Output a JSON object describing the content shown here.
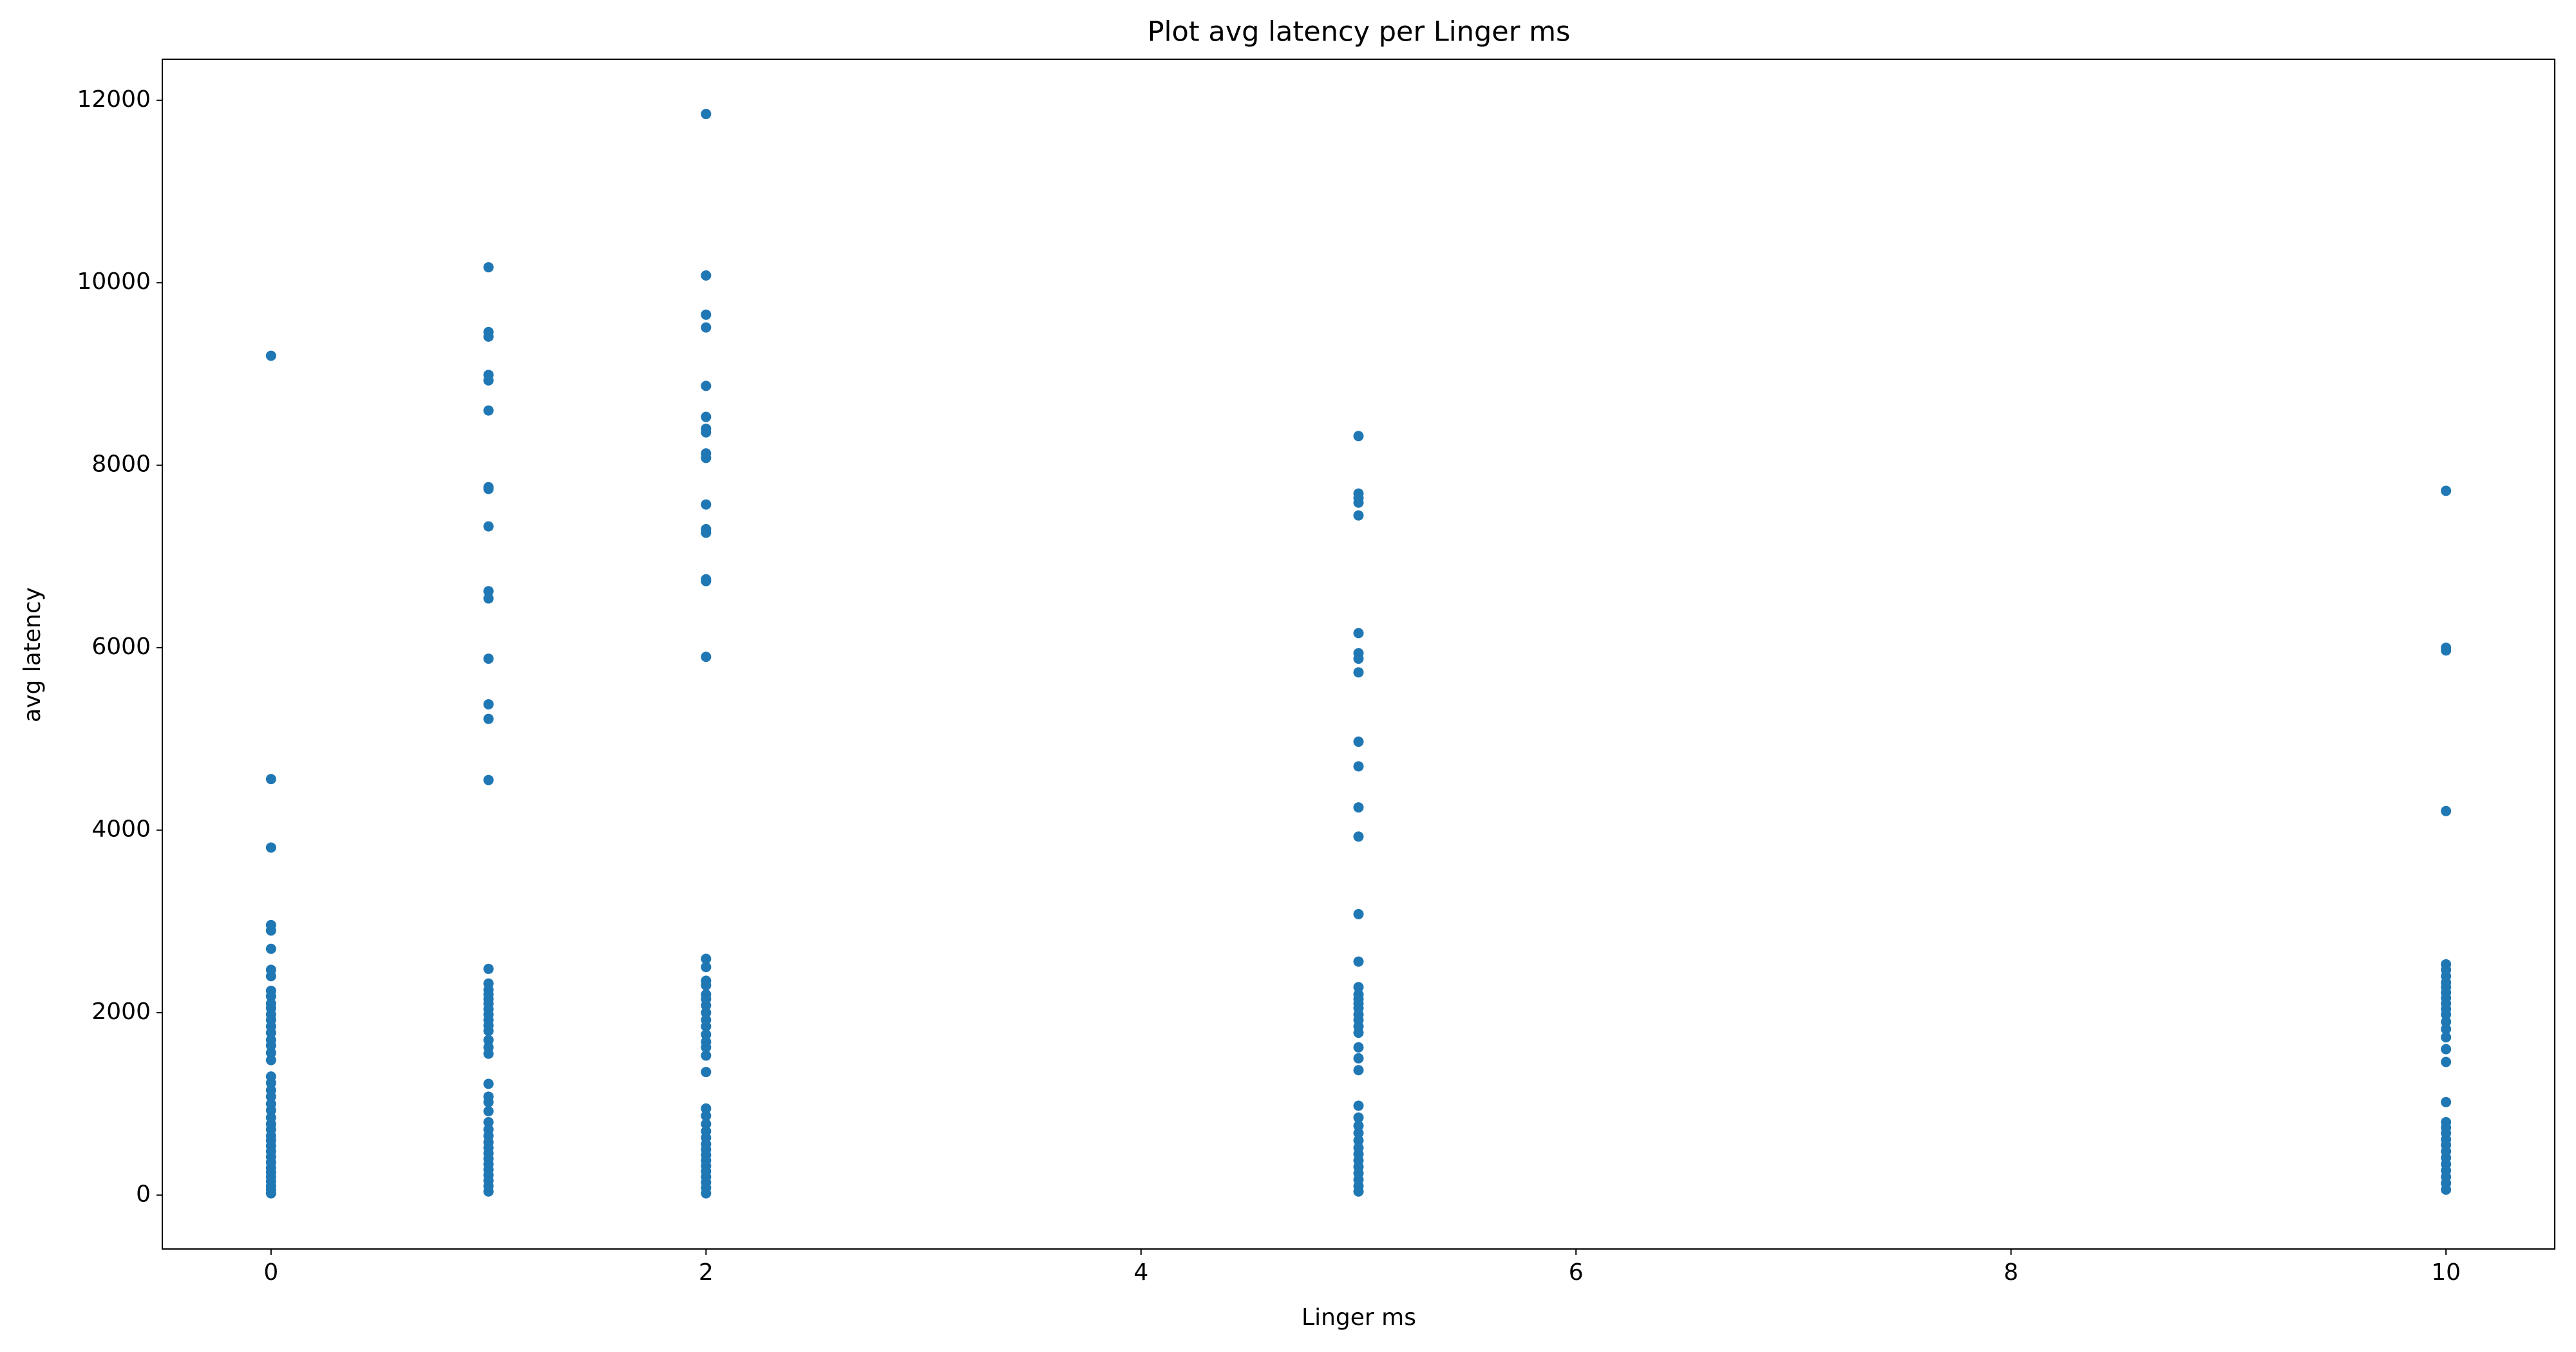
{
  "chart_data": {
    "type": "scatter",
    "title": "Plot avg latency per Linger ms",
    "x_label": "Linger ms",
    "y_label": "avg latency",
    "xlim": [
      -0.5,
      10.5
    ],
    "ylim": [
      -590,
      12450
    ],
    "xticks": [
      0,
      2,
      4,
      6,
      8,
      10
    ],
    "yticks": [
      0,
      2000,
      4000,
      6000,
      8000,
      10000,
      12000
    ],
    "grid": false,
    "series": [
      {
        "color": "#1f77b4",
        "x": [
          0,
          0,
          0,
          0,
          0,
          0,
          0,
          0,
          0,
          0,
          0,
          0,
          0,
          0,
          0,
          0,
          0,
          0,
          0,
          0,
          0,
          0,
          0,
          0,
          0,
          0,
          0,
          0,
          0,
          0,
          0,
          0,
          0,
          0,
          0,
          0,
          0,
          0,
          0,
          0,
          0,
          0,
          1,
          1,
          1,
          1,
          1,
          1,
          1,
          1,
          1,
          1,
          1,
          1,
          1,
          1,
          1,
          1,
          1,
          1,
          1,
          1,
          1,
          1,
          1,
          1,
          1,
          1,
          1,
          1,
          1,
          1,
          1,
          1,
          1,
          1,
          1,
          1,
          1,
          1,
          1,
          1,
          1,
          1,
          1,
          1,
          1,
          1,
          2,
          2,
          2,
          2,
          2,
          2,
          2,
          2,
          2,
          2,
          2,
          2,
          2,
          2,
          2,
          2,
          2,
          2,
          2,
          2,
          2,
          2,
          2,
          2,
          2,
          2,
          2,
          2,
          2,
          2,
          2,
          2,
          2,
          2,
          2,
          2,
          2,
          2,
          2,
          2,
          2,
          2,
          2,
          2,
          2,
          2,
          5,
          5,
          5,
          5,
          5,
          5,
          5,
          5,
          5,
          5,
          5,
          5,
          5,
          5,
          5,
          5,
          5,
          5,
          5,
          5,
          5,
          5,
          5,
          5,
          5,
          5,
          5,
          5,
          5,
          5,
          5,
          5,
          5,
          5,
          5,
          5,
          5,
          5,
          5,
          5,
          10,
          10,
          10,
          10,
          10,
          10,
          10,
          10,
          10,
          10,
          10,
          10,
          10,
          10,
          10,
          10,
          10,
          10,
          10,
          10,
          10,
          10,
          10,
          10,
          10,
          10,
          10,
          10,
          10,
          10,
          10,
          10
        ],
        "values": [
          9200,
          4560,
          3810,
          2960,
          2900,
          2700,
          2470,
          2400,
          2240,
          2180,
          2100,
          2050,
          1980,
          1920,
          1850,
          1780,
          1700,
          1640,
          1560,
          1480,
          1300,
          1230,
          1150,
          1080,
          1000,
          930,
          850,
          780,
          720,
          650,
          600,
          540,
          480,
          420,
          360,
          300,
          250,
          200,
          150,
          100,
          60,
          20,
          10170,
          9460,
          9410,
          8990,
          8930,
          8600,
          7760,
          7740,
          7330,
          6620,
          6540,
          5880,
          5380,
          5220,
          4550,
          2480,
          2320,
          2250,
          2200,
          2150,
          2100,
          2040,
          1980,
          1920,
          1860,
          1800,
          1700,
          1620,
          1550,
          1220,
          1080,
          1020,
          920,
          800,
          720,
          650,
          580,
          520,
          460,
          400,
          340,
          280,
          220,
          160,
          100,
          40,
          11850,
          10080,
          9650,
          9510,
          8870,
          8530,
          8400,
          8360,
          8130,
          8080,
          7570,
          7300,
          7260,
          6750,
          6730,
          5900,
          2590,
          2500,
          2350,
          2300,
          2200,
          2150,
          2080,
          2000,
          1920,
          1850,
          1760,
          1680,
          1620,
          1530,
          1350,
          950,
          870,
          780,
          700,
          630,
          560,
          500,
          440,
          380,
          320,
          260,
          200,
          140,
          80,
          20,
          8320,
          7690,
          7640,
          7590,
          7450,
          6160,
          5940,
          5880,
          5730,
          4970,
          4700,
          4250,
          3930,
          3080,
          2560,
          2280,
          2200,
          2150,
          2100,
          2050,
          1980,
          1920,
          1850,
          1780,
          1620,
          1500,
          1370,
          980,
          850,
          760,
          680,
          600,
          520,
          450,
          380,
          310,
          240,
          170,
          100,
          40,
          7720,
          6000,
          5970,
          4210,
          2530,
          2470,
          2400,
          2330,
          2280,
          2220,
          2160,
          2100,
          2040,
          1980,
          1900,
          1820,
          1730,
          1600,
          1460,
          1020,
          800,
          740,
          680,
          610,
          550,
          480,
          410,
          340,
          270,
          200,
          130,
          60
        ]
      }
    ]
  }
}
